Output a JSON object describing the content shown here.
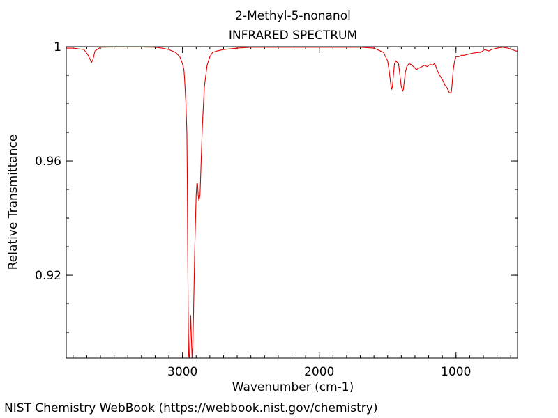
{
  "chart_data": {
    "type": "line",
    "title": "2-Methyl-5-nonanol",
    "subtitle": "INFRARED SPECTRUM",
    "xlabel": "Wavenumber (cm-1)",
    "ylabel": "Relative Transmittance",
    "xlim": [
      3850,
      550
    ],
    "ylim": [
      0.891,
      1.0
    ],
    "x_ticks": [
      3000,
      2000,
      1000
    ],
    "y_ticks": [
      1,
      0.96,
      0.92
    ],
    "x_tick_labels": [
      "3000",
      "2000",
      "1000"
    ],
    "y_tick_labels": [
      "1",
      "0.96",
      "0.92"
    ],
    "grid": false,
    "series": [
      {
        "color": "#e00000",
        "x": [
          3850,
          3800,
          3720,
          3690,
          3675,
          3665,
          3655,
          3640,
          3600,
          3500,
          3400,
          3300,
          3200,
          3150,
          3100,
          3050,
          3020,
          3000,
          2990,
          2985,
          2975,
          2968,
          2965,
          2962,
          2958,
          2955,
          2950,
          2945,
          2940,
          2935,
          2930,
          2925,
          2920,
          2910,
          2900,
          2895,
          2890,
          2885,
          2880,
          2872,
          2865,
          2855,
          2840,
          2820,
          2800,
          2780,
          2750,
          2700,
          2600,
          2500,
          2400,
          2300,
          2200,
          2100,
          2000,
          1900,
          1800,
          1700,
          1600,
          1530,
          1500,
          1490,
          1480,
          1475,
          1470,
          1465,
          1458,
          1450,
          1440,
          1420,
          1410,
          1400,
          1390,
          1385,
          1378,
          1370,
          1360,
          1345,
          1330,
          1310,
          1290,
          1270,
          1250,
          1230,
          1210,
          1190,
          1170,
          1160,
          1150,
          1140,
          1120,
          1100,
          1080,
          1065,
          1050,
          1040,
          1035,
          1030,
          1025,
          1020,
          1010,
          1000,
          980,
          960,
          940,
          900,
          870,
          840,
          820,
          790,
          760,
          740,
          700,
          660,
          620,
          590,
          560,
          550
        ],
        "y": [
          0.9995,
          0.9995,
          0.999,
          0.997,
          0.9955,
          0.9945,
          0.9955,
          0.9985,
          0.9998,
          0.9999,
          0.9999,
          0.9999,
          0.9998,
          0.9995,
          0.999,
          0.998,
          0.9965,
          0.994,
          0.992,
          0.989,
          0.98,
          0.97,
          0.955,
          0.93,
          0.905,
          0.892,
          0.891,
          0.898,
          0.906,
          0.898,
          0.891,
          0.895,
          0.905,
          0.93,
          0.948,
          0.952,
          0.952,
          0.948,
          0.946,
          0.948,
          0.958,
          0.972,
          0.986,
          0.9935,
          0.9965,
          0.998,
          0.9985,
          0.999,
          0.9995,
          0.9998,
          0.9998,
          0.9998,
          0.9998,
          0.9998,
          0.9998,
          0.9998,
          0.9998,
          0.9998,
          0.9995,
          0.998,
          0.995,
          0.992,
          0.988,
          0.986,
          0.985,
          0.986,
          0.99,
          0.994,
          0.995,
          0.994,
          0.99,
          0.986,
          0.9845,
          0.985,
          0.988,
          0.991,
          0.993,
          0.994,
          0.9938,
          0.993,
          0.992,
          0.9925,
          0.993,
          0.9935,
          0.993,
          0.9938,
          0.9935,
          0.994,
          0.9935,
          0.992,
          0.99,
          0.9885,
          0.9865,
          0.9855,
          0.984,
          0.9838,
          0.984,
          0.986,
          0.989,
          0.992,
          0.995,
          0.9965,
          0.9965,
          0.997,
          0.997,
          0.9975,
          0.9978,
          0.998,
          0.998,
          0.999,
          0.9985,
          0.999,
          0.9995,
          0.9998,
          0.9995,
          0.999,
          0.9985,
          0.9985
        ]
      }
    ]
  },
  "footer": "NIST Chemistry WebBook (https://webbook.nist.gov/chemistry)"
}
